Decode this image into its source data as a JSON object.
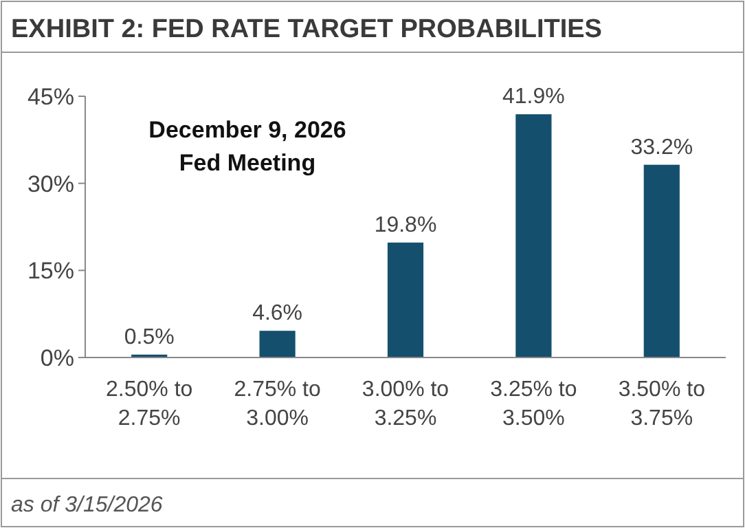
{
  "chart_data": {
    "type": "bar",
    "title": "EXHIBIT 2: FED RATE TARGET PROBABILITIES",
    "categories": [
      "2.50% to 2.75%",
      "2.75% to 3.00%",
      "3.00% to 3.25%",
      "3.25% to 3.50%",
      "3.50% to 3.75%"
    ],
    "values": [
      0.5,
      4.6,
      19.8,
      41.9,
      33.2
    ],
    "value_labels": [
      "0.5%",
      "4.6%",
      "19.8%",
      "41.9%",
      "33.2%"
    ],
    "color": "#14506e",
    "ylim": [
      0,
      45
    ],
    "yticks": [
      {
        "value": 0,
        "label": "0%"
      },
      {
        "value": 15,
        "label": "15%"
      },
      {
        "value": 30,
        "label": "30%"
      },
      {
        "value": 45,
        "label": "45%"
      }
    ],
    "grid": false,
    "annotations": [
      "December 9, 2026\nFed Meeting",
      "as of 3/15/2026"
    ]
  }
}
